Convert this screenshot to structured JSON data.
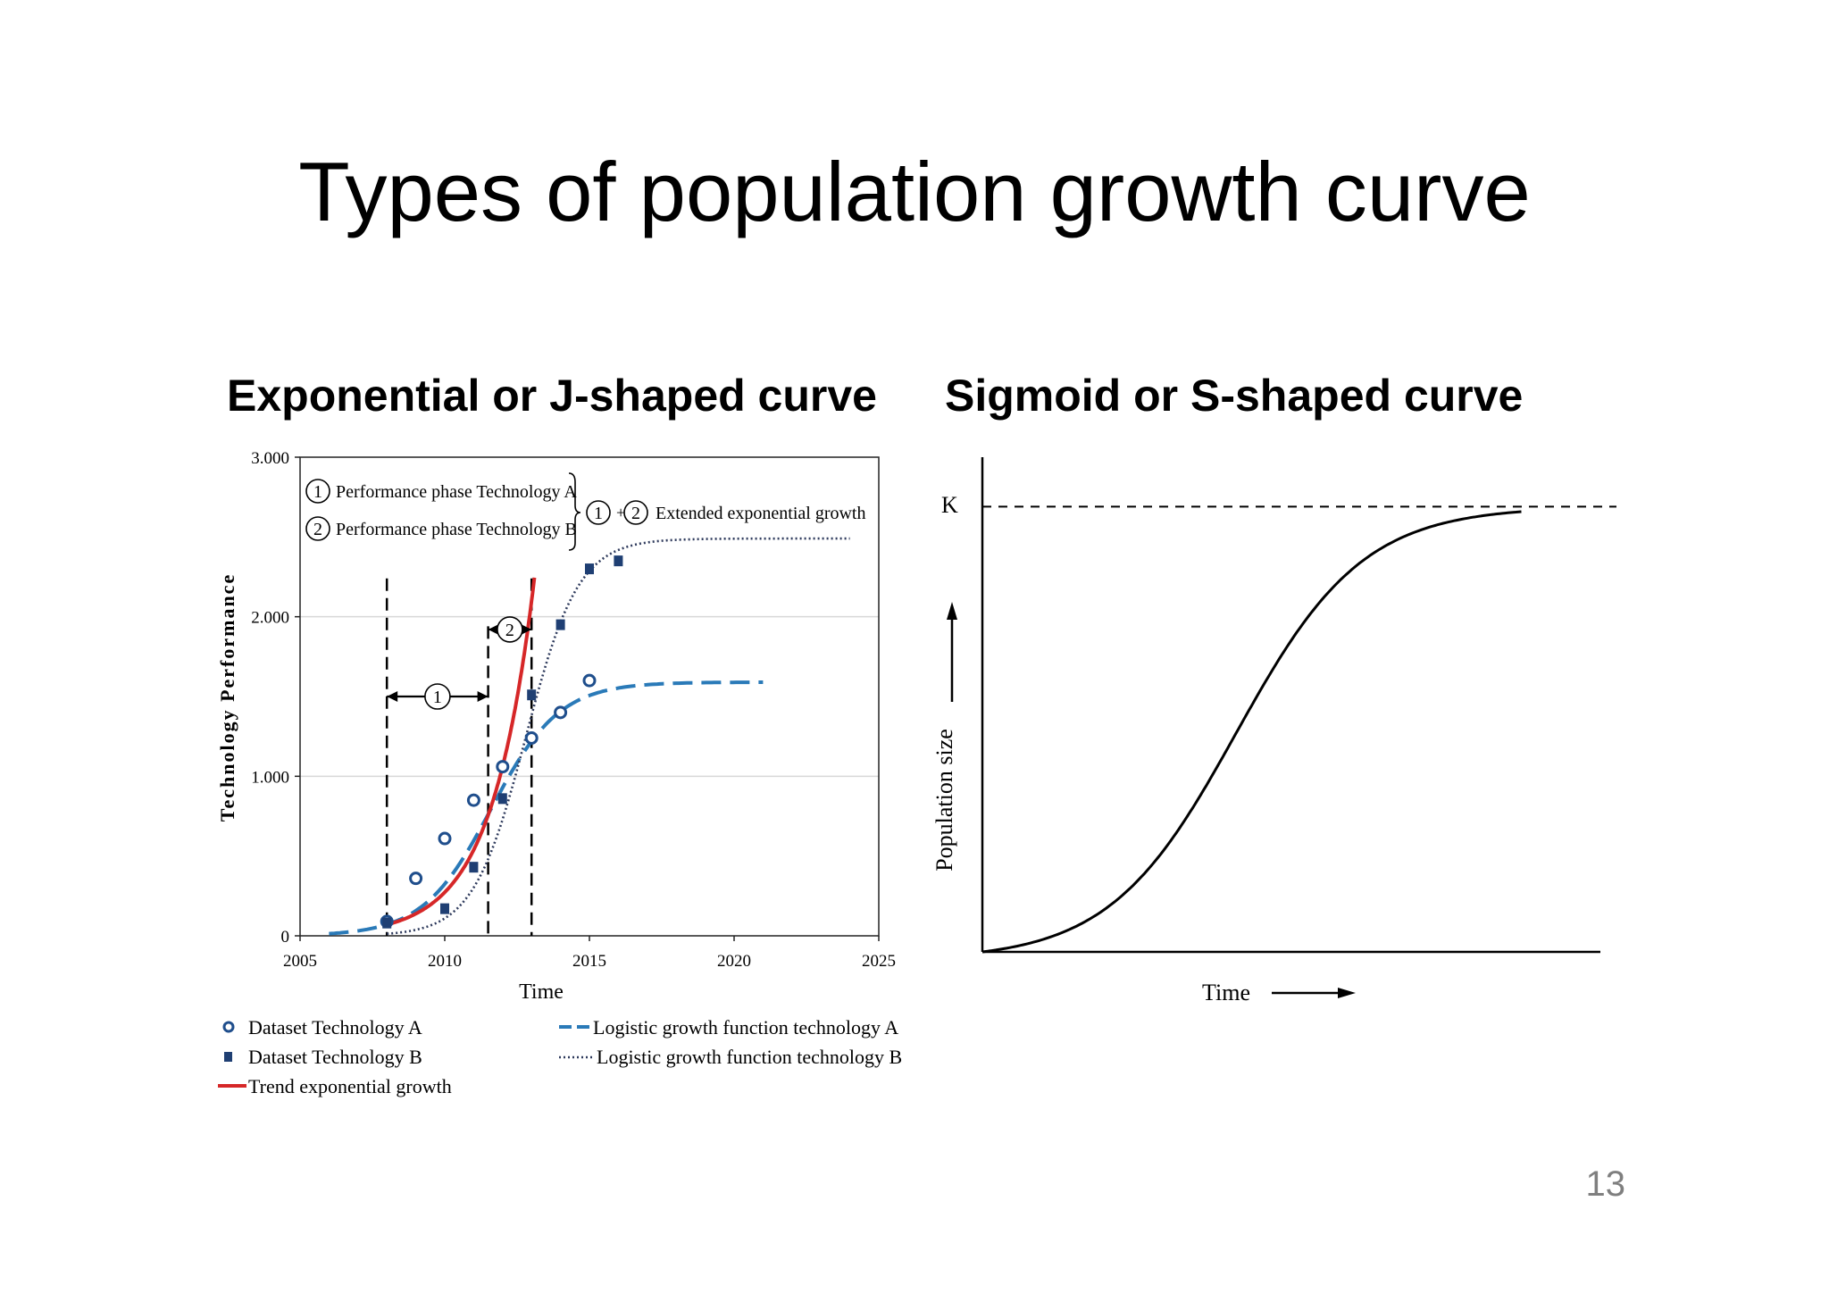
{
  "slide": {
    "title": "Types of population growth curve",
    "page_number": "13"
  },
  "left": {
    "subtitle": "Exponential or J-shaped curve"
  },
  "right": {
    "subtitle": "Sigmoid or S-shaped curve"
  },
  "chart_data": [
    {
      "type": "scatter",
      "xlabel": "Time",
      "ylabel": "Technology Performance",
      "xlim": [
        2005,
        2025
      ],
      "ylim": [
        0,
        3000
      ],
      "xticks": [
        2005,
        2010,
        2015,
        2020,
        2025
      ],
      "xtick_labels": [
        "2005",
        "2010",
        "2015",
        "2020",
        "2025"
      ],
      "yticks": [
        0,
        1000,
        2000,
        3000
      ],
      "ytick_labels": [
        "0",
        "1.000",
        "2.000",
        "3.000"
      ],
      "grid": true,
      "series": [
        {
          "name": "Dataset Technology A",
          "kind": "points",
          "marker": "circle",
          "color": "#1f4e8c",
          "x": [
            2008,
            2009,
            2010,
            2011,
            2012,
            2013,
            2014,
            2015
          ],
          "y": [
            90,
            360,
            610,
            850,
            1060,
            1240,
            1400,
            1600
          ]
        },
        {
          "name": "Dataset Technology B",
          "kind": "points",
          "marker": "square",
          "color": "#1f3f73",
          "x": [
            2008,
            2010,
            2011,
            2012,
            2013,
            2014,
            2015,
            2016
          ],
          "y": [
            80,
            170,
            430,
            860,
            1510,
            1950,
            2300,
            2350
          ]
        },
        {
          "name": "Logistic growth function technology A",
          "kind": "logistic",
          "style": "dashed",
          "color": "#2a7ab8",
          "L": 1590,
          "k": 0.85,
          "x0": 2011.6,
          "xrange": [
            2006,
            2021
          ]
        },
        {
          "name": "Logistic growth function technology B",
          "kind": "logistic",
          "style": "dotted",
          "color": "#2e3a5c",
          "L": 2490,
          "k": 1.1,
          "x0": 2012.8,
          "xrange": [
            2008,
            2024
          ]
        },
        {
          "name": "Trend exponential growth",
          "kind": "exponential",
          "style": "solid",
          "color": "#d62728",
          "a": 70,
          "b": 0.68,
          "x_start": 2008,
          "xrange": [
            2008,
            2013.1
          ]
        }
      ],
      "annotations": {
        "phase_markers": [
          "1",
          "2"
        ],
        "phase_labels": [
          "Performance phase Technology A",
          "Performance phase Technology B"
        ],
        "extended_label": "Extended exponential growth",
        "plus_sign": "+",
        "boundaries": [
          2008,
          2011.5,
          2013
        ],
        "arrow1": {
          "from": 2008,
          "to": 2011.5,
          "y": 1500
        },
        "arrow2": {
          "from": 2011.5,
          "to": 2013,
          "y": 1920
        }
      }
    },
    {
      "type": "line",
      "xlabel": "Time",
      "ylabel": "Population size",
      "carrying_capacity_label": "K",
      "ylim": [
        0,
        1
      ],
      "xlim": [
        0,
        1
      ],
      "K": 0.9,
      "curve": {
        "kind": "logistic",
        "L": 0.9,
        "k": 10,
        "x0": 0.4
      }
    }
  ]
}
